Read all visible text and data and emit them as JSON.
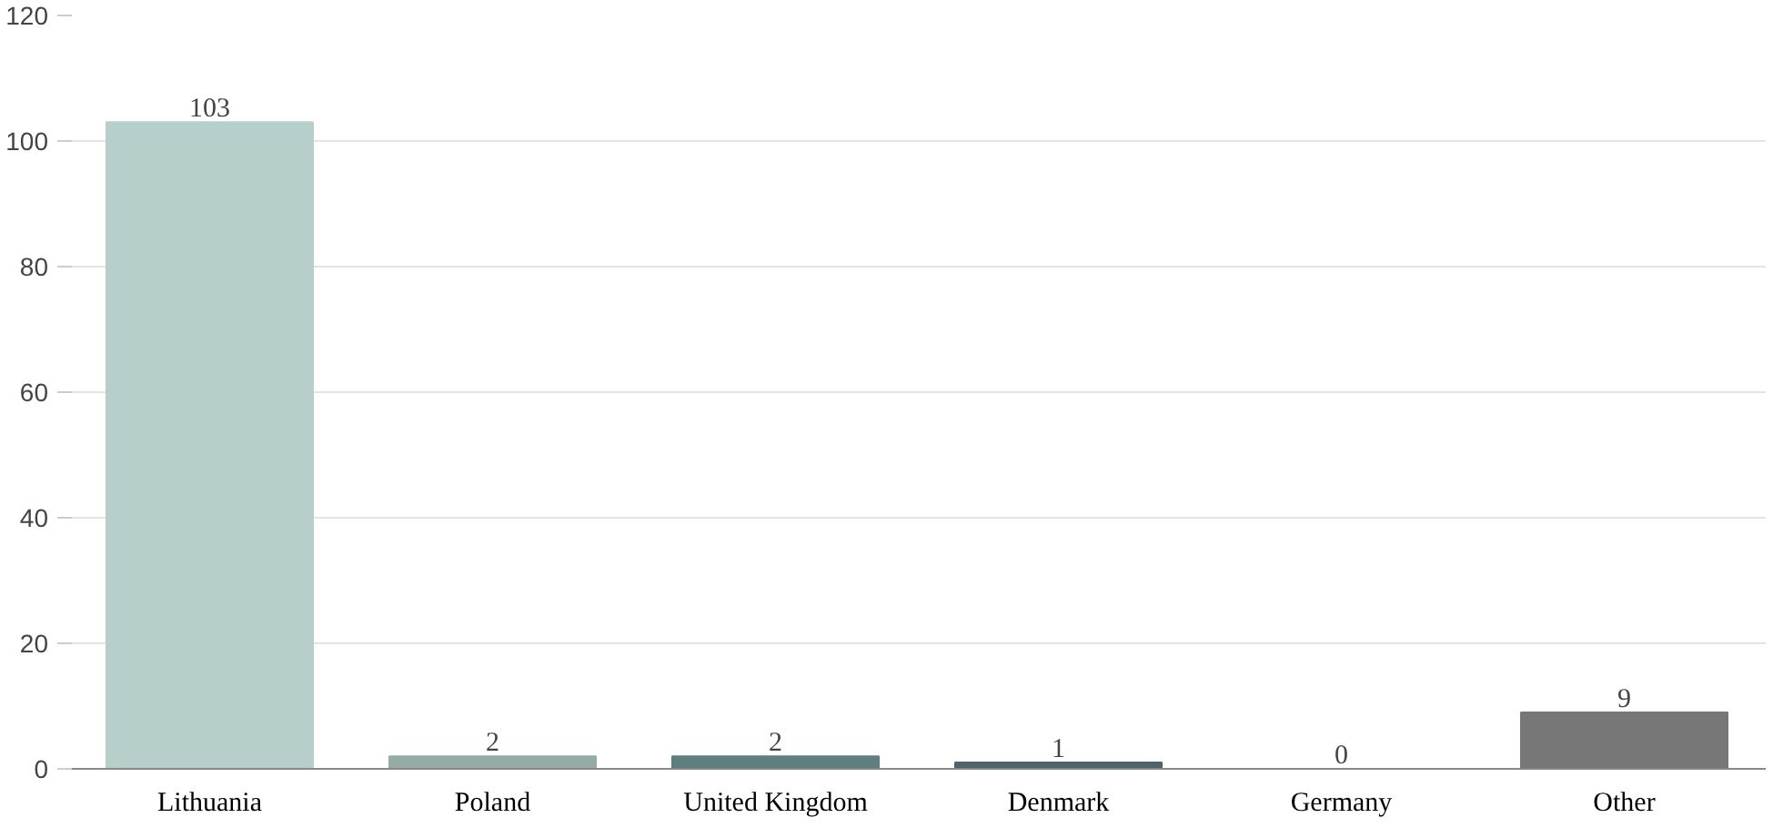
{
  "chart_data": {
    "type": "bar",
    "categories": [
      "Lithuania",
      "Poland",
      "United Kingdom",
      "Denmark",
      "Germany",
      "Other"
    ],
    "values": [
      103,
      2,
      2,
      1,
      0,
      9
    ],
    "colors": [
      "#b7cfcb",
      "#94aba6",
      "#5f7f7f",
      "#4d6469",
      "#3a484c",
      "#777777"
    ],
    "ylim": [
      0,
      120
    ],
    "yticks": [
      0,
      20,
      40,
      60,
      80,
      100,
      120
    ],
    "grid": "y",
    "data_labels": true
  }
}
